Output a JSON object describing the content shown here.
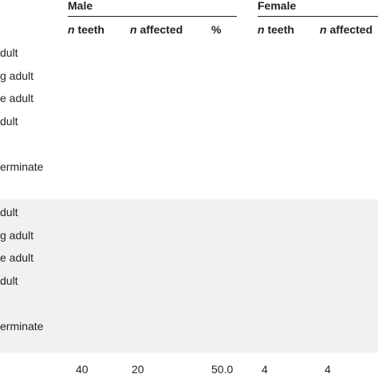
{
  "header": {
    "groups": [
      "Male",
      "Female"
    ],
    "subheaders": [
      {
        "italic": "n",
        "text": "teeth"
      },
      {
        "italic": "n",
        "text": "affected"
      },
      {
        "italic": "",
        "text": "%"
      },
      {
        "italic": "n",
        "text": "teeth"
      },
      {
        "italic": "n",
        "text": "affected"
      }
    ]
  },
  "sections": [
    {
      "rows": [
        "dult",
        "g adult",
        "e adult",
        "dult",
        "erminate"
      ]
    },
    {
      "rows": [
        "dult",
        "g adult",
        "e adult",
        "dult",
        "erminate"
      ]
    }
  ],
  "total": [
    "40",
    "20",
    "50.0",
    "4",
    "4"
  ]
}
